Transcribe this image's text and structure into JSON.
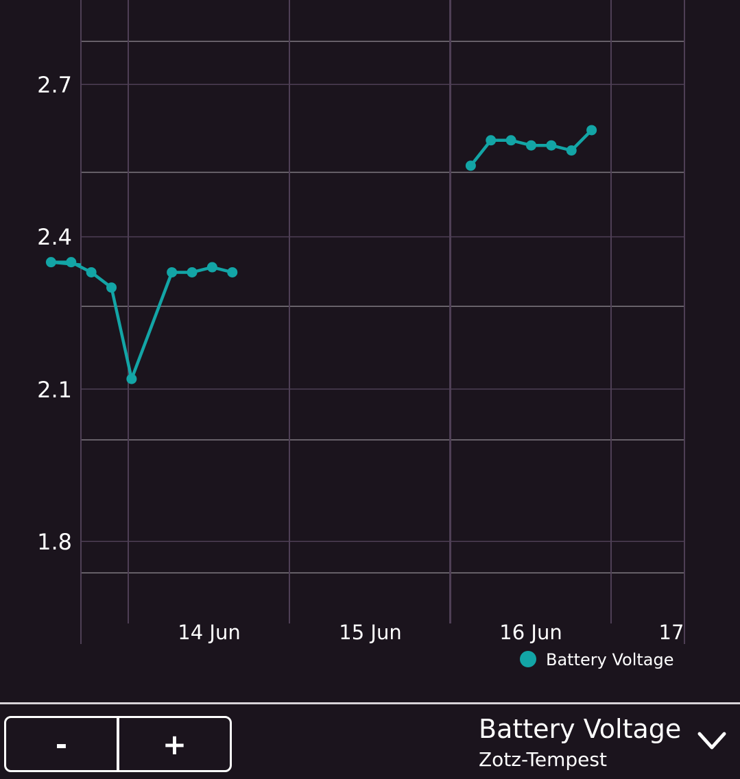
{
  "chart_data": {
    "type": "line",
    "title": "",
    "xlabel": "",
    "ylabel": "",
    "x_tick_labels": [
      "14 Jun",
      "15 Jun",
      "16 Jun",
      "17"
    ],
    "y_tick_labels": [
      "2.7",
      "2.4",
      "2.1",
      "1.8"
    ],
    "y_ticks": [
      2.7,
      2.4,
      2.1,
      1.8
    ],
    "ylim": [
      1.58,
      2.86
    ],
    "grid": true,
    "legend_position": "bottom-right",
    "series": [
      {
        "name": "Battery Voltage",
        "color": "#13a5a6",
        "segments": [
          [
            {
              "x": "13 Jun 12:30",
              "y": 2.35
            },
            {
              "x": "13 Jun 15:30",
              "y": 2.35
            },
            {
              "x": "13 Jun 18:30",
              "y": 2.33
            },
            {
              "x": "13 Jun 21:30",
              "y": 2.3
            },
            {
              "x": "14 Jun 00:30",
              "y": 2.12
            },
            {
              "x": "14 Jun 06:30",
              "y": 2.33
            },
            {
              "x": "14 Jun 09:30",
              "y": 2.33
            },
            {
              "x": "14 Jun 12:30",
              "y": 2.34
            },
            {
              "x": "14 Jun 15:30",
              "y": 2.33
            }
          ],
          [
            {
              "x": "16 Jun 03:00",
              "y": 2.54
            },
            {
              "x": "16 Jun 06:00",
              "y": 2.59
            },
            {
              "x": "16 Jun 09:00",
              "y": 2.59
            },
            {
              "x": "16 Jun 12:00",
              "y": 2.58
            },
            {
              "x": "16 Jun 15:00",
              "y": 2.58
            },
            {
              "x": "16 Jun 18:00",
              "y": 2.57
            },
            {
              "x": "16 Jun 21:00",
              "y": 2.61
            }
          ]
        ]
      }
    ]
  },
  "legend": {
    "label": "Battery Voltage"
  },
  "controls": {
    "zoom_out_label": "-",
    "zoom_in_label": "+"
  },
  "selector": {
    "title": "Battery Voltage",
    "subtitle": "Zotz-Tempest",
    "icon": "chevron-down-icon"
  },
  "colors": {
    "background": "#1b141d",
    "series": "#13a5a6",
    "grid_major": "#807a82",
    "grid_minor": "#4e3f55",
    "text": "#ffffff"
  }
}
